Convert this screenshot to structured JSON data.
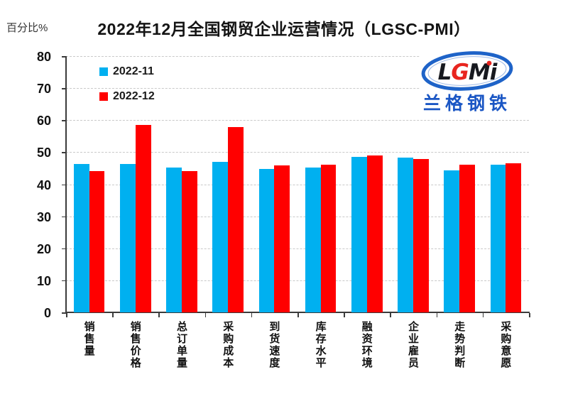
{
  "page": {
    "title": "2022年12月全国钢贸企业运营情况（LGSC-PMI）",
    "y_axis_unit_label": "百分比%"
  },
  "logo": {
    "brand": "LGMI",
    "brand_cn": "兰格钢铁",
    "ellipse_color": "#1e63c8",
    "brand_color": "#17191f",
    "accent_color": "#e8251f",
    "cn_color": "#1a56c4"
  },
  "chart_data": {
    "type": "bar",
    "title": "2022年12月全国钢贸企业运营情况（LGSC-PMI）",
    "ylabel": "百分比%",
    "xlabel": "",
    "ylim": [
      0,
      80
    ],
    "ytick_step": 10,
    "yticks": [
      0,
      10,
      20,
      30,
      40,
      50,
      60,
      70,
      80
    ],
    "grid": true,
    "grid_style": "dashed",
    "legend_position": "top-left",
    "categories": [
      "销售量",
      "销售价格",
      "总订单量",
      "采购成本",
      "到货速度",
      "库存水平",
      "融资环境",
      "企业雇员",
      "走势判断",
      "采购意愿"
    ],
    "series": [
      {
        "name": "2022-11",
        "color": "#00B0F0",
        "values": [
          46.3,
          46.3,
          45.1,
          47.0,
          44.8,
          45.2,
          48.6,
          48.4,
          44.4,
          46.2
        ]
      },
      {
        "name": "2022-12",
        "color": "#FF0000",
        "values": [
          44.0,
          58.4,
          44.0,
          57.9,
          45.9,
          46.0,
          48.9,
          47.9,
          46.1,
          46.6
        ]
      }
    ]
  }
}
